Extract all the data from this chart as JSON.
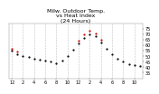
{
  "title": "Milw. Outdoor Temp.\nvs Heat Index\n(24 Hours)",
  "temp_color": "#000000",
  "heat_color": "#cc0000",
  "background_color": "#ffffff",
  "grid_color": "#bbbbbb",
  "ylim": [
    30,
    80
  ],
  "yticks": [
    35,
    40,
    45,
    50,
    55,
    60,
    65,
    70,
    75
  ],
  "hours": [
    0,
    1,
    2,
    3,
    4,
    5,
    6,
    7,
    8,
    9,
    10,
    11,
    12,
    13,
    14,
    15,
    16,
    17,
    18,
    19,
    20,
    21,
    22,
    23
  ],
  "temp": [
    55,
    52,
    50,
    49,
    48,
    47,
    46,
    45,
    44,
    46,
    50,
    56,
    62,
    67,
    70,
    68,
    63,
    57,
    52,
    48,
    45,
    43,
    42,
    41
  ],
  "heat_index": [
    57,
    54,
    null,
    null,
    null,
    null,
    null,
    null,
    null,
    null,
    null,
    null,
    64,
    70,
    73,
    71,
    65,
    null,
    null,
    null,
    null,
    null,
    null,
    null
  ],
  "xtick_hours": [
    0,
    2,
    4,
    6,
    8,
    10,
    12,
    14,
    16,
    18,
    20,
    22
  ],
  "xtick_labels": [
    "12",
    "2",
    "4",
    "6",
    "8",
    "10",
    "12",
    "2",
    "4",
    "6",
    "8",
    "10"
  ],
  "title_fontsize": 4.5,
  "tick_fontsize": 3.5,
  "marker_size": 1.2,
  "ylabel_right": true
}
